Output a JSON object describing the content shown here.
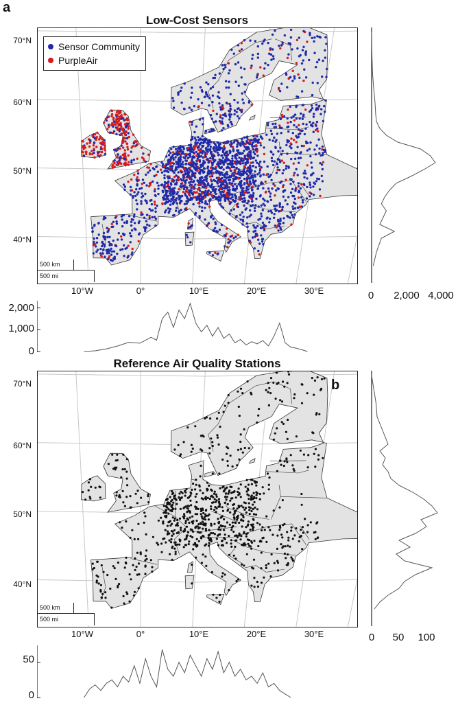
{
  "panel_a": {
    "letter": "a",
    "title": "Low-Cost Sensors",
    "legend": [
      {
        "label": "Sensor Community",
        "color": "#1f2aa8"
      },
      {
        "label": "PurpleAir",
        "color": "#d41c1c"
      }
    ],
    "scale_km": "500 km",
    "scale_mi": "500 mi"
  },
  "panel_b": {
    "letter": "b",
    "title": "Reference Air Quality Stations",
    "scale_km": "500 km",
    "scale_mi": "500 mi"
  },
  "lat_labels": [
    "70°N",
    "60°N",
    "50°N",
    "40°N"
  ],
  "lon_labels": [
    "10°W",
    "0°",
    "10°E",
    "20°E",
    "30°E"
  ],
  "colors": {
    "land": "#e3e3e3",
    "border": "#333333",
    "grid": "#c8c8c8",
    "station": "#111111",
    "hist_line": "#555555"
  },
  "chart_data": [
    {
      "type": "line",
      "name": "a-longitude-histogram",
      "x": [
        -10,
        -8,
        -6,
        -4,
        -2,
        0,
        2,
        3,
        4,
        5,
        6,
        7,
        8,
        9,
        10,
        11,
        12,
        13,
        14,
        15,
        16,
        17,
        18,
        19,
        20,
        21,
        22,
        23,
        24,
        25,
        26,
        27,
        28,
        29,
        30
      ],
      "values": [
        0,
        30,
        120,
        250,
        420,
        380,
        650,
        520,
        1500,
        1800,
        1100,
        1900,
        1500,
        2200,
        1300,
        900,
        1200,
        700,
        1100,
        600,
        800,
        400,
        550,
        300,
        450,
        350,
        500,
        250,
        700,
        1300,
        400,
        200,
        150,
        80,
        0
      ],
      "yticks": [
        "0",
        "1,000",
        "2,000"
      ],
      "ylim": [
        0,
        2200
      ]
    },
    {
      "type": "line",
      "name": "a-latitude-histogram",
      "y": [
        36,
        38,
        40,
        41,
        42,
        43,
        44,
        45,
        46,
        47,
        48,
        49,
        50,
        51,
        52,
        53,
        54,
        55,
        56,
        57,
        58,
        60,
        62,
        64,
        66,
        68,
        70
      ],
      "values": [
        100,
        300,
        600,
        1400,
        500,
        700,
        900,
        600,
        800,
        1100,
        1500,
        2400,
        3200,
        3900,
        3600,
        3000,
        1600,
        900,
        500,
        300,
        250,
        200,
        120,
        60,
        30,
        10,
        0
      ],
      "xticks": [
        "0",
        "2,000",
        "4,000"
      ],
      "xlim": [
        0,
        4200
      ]
    },
    {
      "type": "line",
      "name": "b-longitude-histogram",
      "x": [
        -10,
        -9,
        -8,
        -7,
        -6,
        -5,
        -4,
        -3,
        -2,
        -1,
        0,
        1,
        2,
        3,
        4,
        5,
        6,
        7,
        8,
        9,
        10,
        11,
        12,
        13,
        14,
        15,
        16,
        17,
        18,
        19,
        20,
        21,
        22,
        23,
        24,
        25,
        26,
        27
      ],
      "values": [
        0,
        12,
        18,
        10,
        20,
        25,
        15,
        30,
        22,
        45,
        20,
        55,
        30,
        15,
        68,
        40,
        30,
        50,
        35,
        60,
        45,
        30,
        55,
        40,
        65,
        35,
        50,
        30,
        40,
        25,
        30,
        20,
        35,
        15,
        20,
        10,
        5,
        0
      ],
      "yticks": [
        "0",
        "50"
      ],
      "ylim": [
        0,
        70
      ]
    },
    {
      "type": "line",
      "name": "b-latitude-histogram",
      "y": [
        36,
        37,
        38,
        39,
        40,
        41,
        42,
        43,
        44,
        45,
        46,
        47,
        48,
        49,
        50,
        51,
        52,
        53,
        54,
        55,
        56,
        57,
        58,
        59,
        60,
        62,
        64,
        66,
        68,
        70
      ],
      "values": [
        5,
        15,
        30,
        50,
        60,
        80,
        110,
        60,
        45,
        70,
        50,
        80,
        100,
        90,
        120,
        110,
        95,
        75,
        50,
        35,
        30,
        20,
        25,
        15,
        30,
        20,
        10,
        8,
        4,
        0
      ],
      "xticks": [
        "0",
        "50",
        "100"
      ],
      "xlim": [
        0,
        125
      ]
    }
  ]
}
